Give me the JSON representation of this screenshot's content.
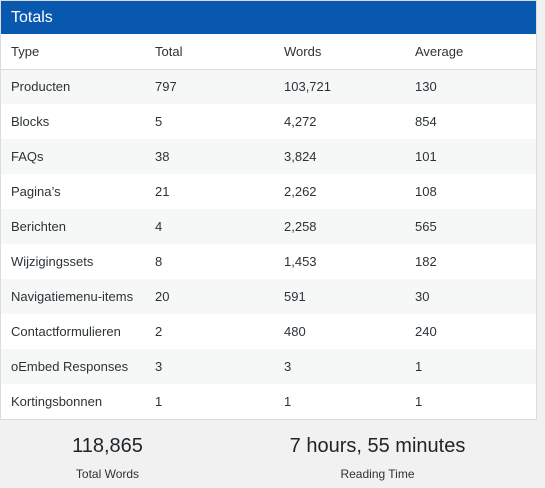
{
  "panel": {
    "title": "Totals"
  },
  "table": {
    "headers": {
      "type": "Type",
      "total": "Total",
      "words": "Words",
      "average": "Average"
    },
    "rows": [
      {
        "type": "Producten",
        "total": "797",
        "words": "103,721",
        "average": "130"
      },
      {
        "type": "Blocks",
        "total": "5",
        "words": "4,272",
        "average": "854"
      },
      {
        "type": "FAQs",
        "total": "38",
        "words": "3,824",
        "average": "101"
      },
      {
        "type": "Pagina’s",
        "total": "21",
        "words": "2,262",
        "average": "108"
      },
      {
        "type": "Berichten",
        "total": "4",
        "words": "2,258",
        "average": "565"
      },
      {
        "type": "Wijzigingssets",
        "total": "8",
        "words": "1,453",
        "average": "182"
      },
      {
        "type": "Navigatiemenu-items",
        "total": "20",
        "words": "591",
        "average": "30"
      },
      {
        "type": "Contactformulieren",
        "total": "2",
        "words": "480",
        "average": "240"
      },
      {
        "type": "oEmbed Responses",
        "total": "3",
        "words": "3",
        "average": "1"
      },
      {
        "type": "Kortingsbonnen",
        "total": "1",
        "words": "1",
        "average": "1"
      }
    ]
  },
  "summary": {
    "total_words_value": "118,865",
    "total_words_label": "Total Words",
    "reading_time_value": "7 hours, 55 minutes",
    "reading_time_label": "Reading Time"
  },
  "colors": {
    "header_bg": "#0958b0",
    "page_bg": "#f1f1f1",
    "stripe": "#f6f7f7"
  }
}
